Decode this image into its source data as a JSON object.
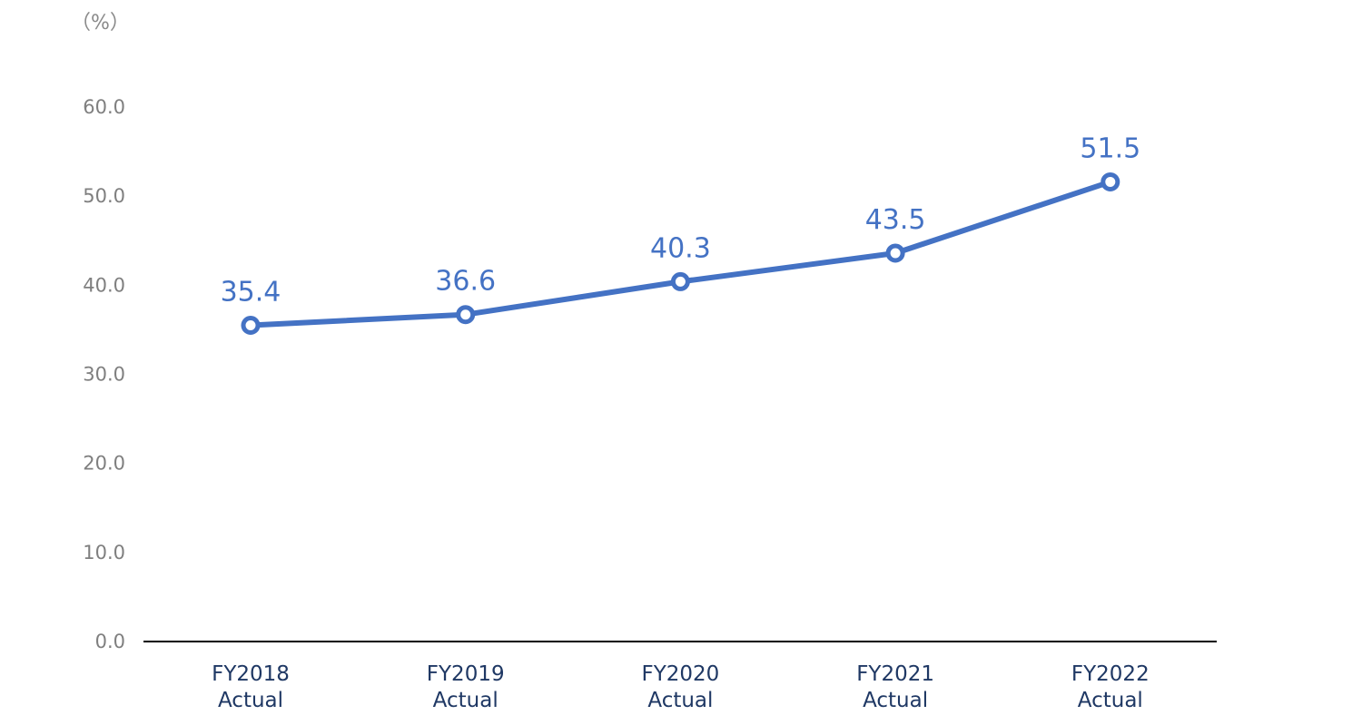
{
  "chart_data": {
    "type": "line",
    "unit_label": "（%）",
    "categories": [
      [
        "FY2018",
        "Actual"
      ],
      [
        "FY2019",
        "Actual"
      ],
      [
        "FY2020",
        "Actual"
      ],
      [
        "FY2021",
        "Actual"
      ],
      [
        "FY2022",
        "Actual"
      ]
    ],
    "series": [
      {
        "values": [
          35.4,
          36.6,
          40.3,
          43.5,
          51.5
        ],
        "labels": [
          "35.4",
          "36.6",
          "40.3",
          "43.5",
          "51.5"
        ]
      }
    ],
    "yticks": [
      "0.0",
      "10.0",
      "20.0",
      "30.0",
      "40.0",
      "50.0",
      "60.0"
    ],
    "ylim": [
      0,
      60
    ],
    "grid": false,
    "colors": {
      "line": "#4472c4",
      "marker_fill": "#ffffff",
      "axis": "#000000",
      "x_tick_text": "#1f3864",
      "y_tick_text": "#7f7f7f",
      "data_label": "#4472c4"
    }
  }
}
